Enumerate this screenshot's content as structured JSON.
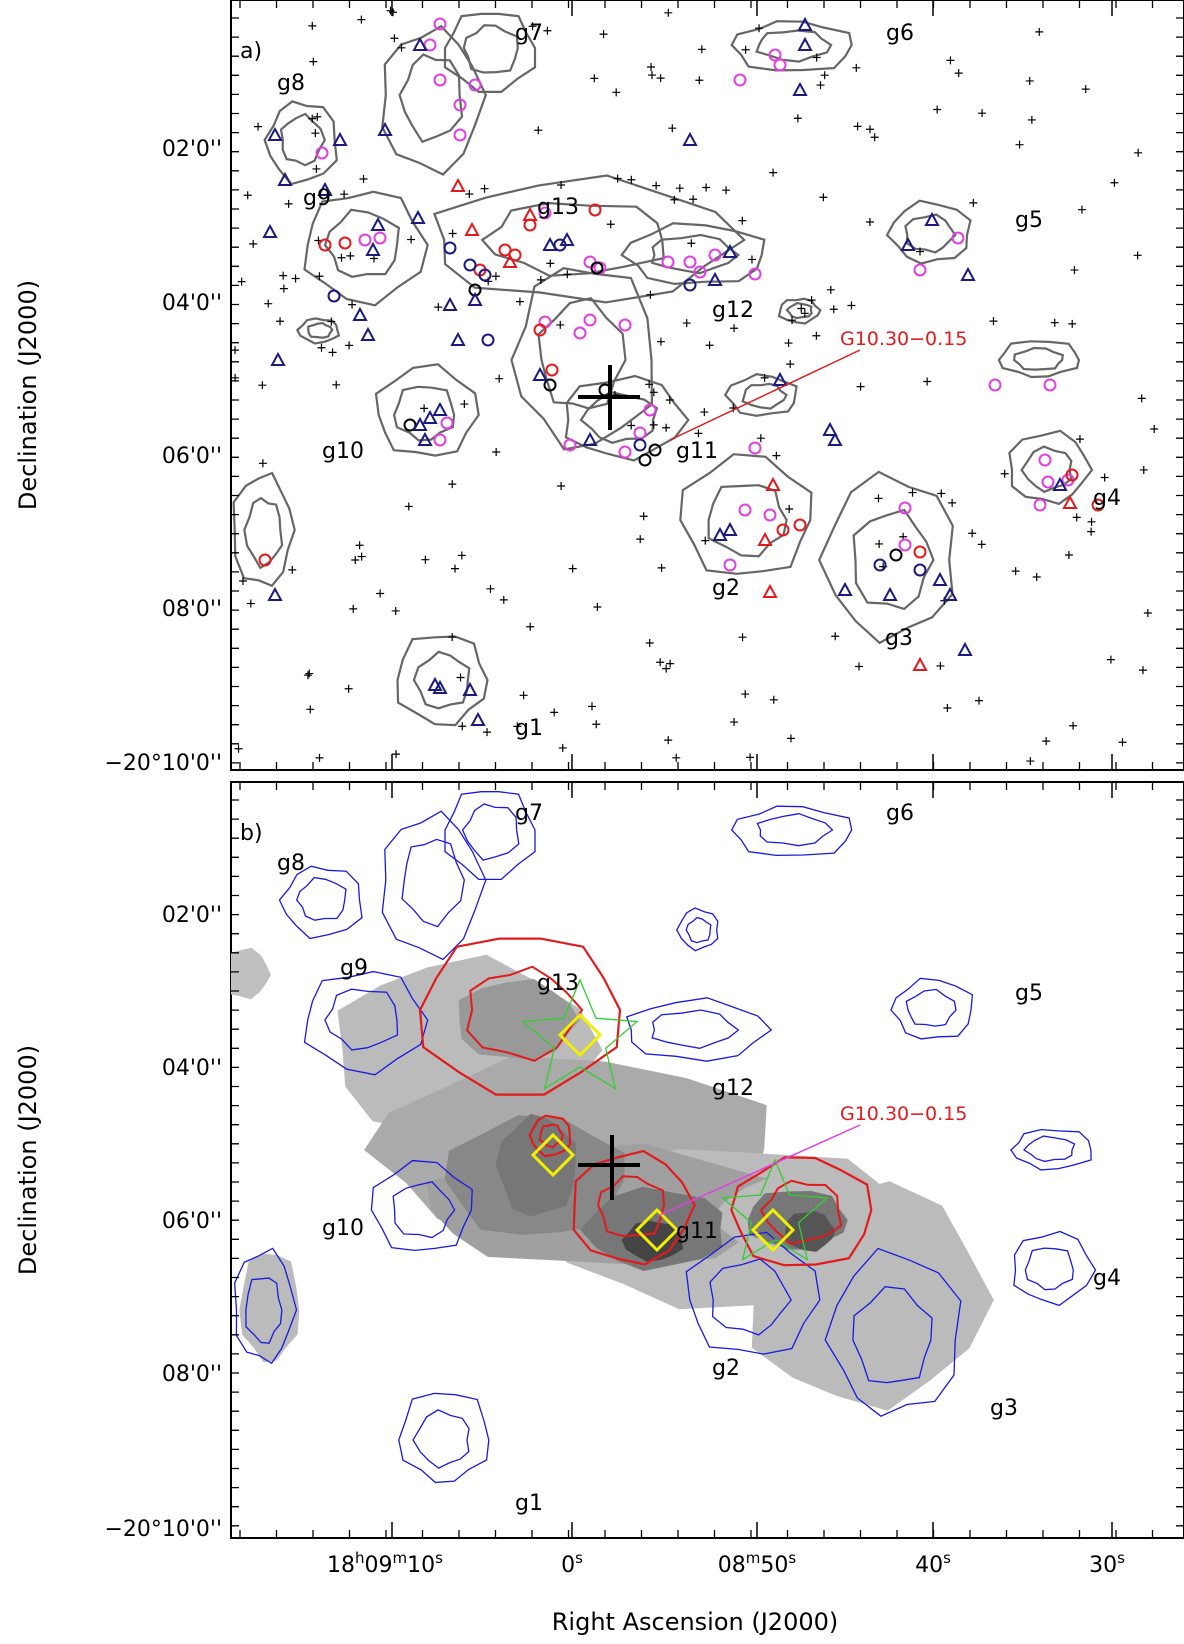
{
  "panel_a": {
    "label": "a)",
    "region_labels": [
      "g1",
      "g2",
      "g3",
      "g4",
      "g5",
      "g6",
      "g7",
      "g8",
      "g9",
      "g10",
      "g11",
      "g12",
      "g13"
    ],
    "source_label": "G10.30−0.15"
  },
  "panel_b": {
    "label": "b)",
    "region_labels": [
      "g1",
      "g2",
      "g3",
      "g4",
      "g5",
      "g6",
      "g7",
      "g8",
      "g9",
      "g10",
      "g11",
      "g12",
      "g13"
    ],
    "source_label": "G10.30−0.15"
  },
  "axes": {
    "ylabel": "Declination (J2000)",
    "xlabel": "Right Ascension (J2000)",
    "y_ticks": [
      "02'0''",
      "04'0''",
      "06'0''",
      "08'0''",
      "−20°10'0''"
    ],
    "x_ticks": [
      {
        "main": "18",
        "sup1": "h",
        "mid": "09",
        "sup2": "m",
        "end": "10",
        "sup3": "s"
      },
      {
        "main": "0",
        "sup3": "s"
      },
      {
        "main": "08",
        "sup2": "m",
        "end": "50",
        "sup3": "s"
      },
      {
        "main": "40",
        "sup3": "s"
      },
      {
        "main": "30",
        "sup3": "s"
      }
    ]
  },
  "colors": {
    "contour_a": "#666666",
    "contour_blue": "#1a1adf",
    "contour_red": "#e31a1c",
    "magenta": "#e040e0",
    "navy": "#1a1a80",
    "red": "#e31a1c",
    "black": "#000000",
    "green": "#33cc33",
    "yellow": "#f0f000"
  }
}
